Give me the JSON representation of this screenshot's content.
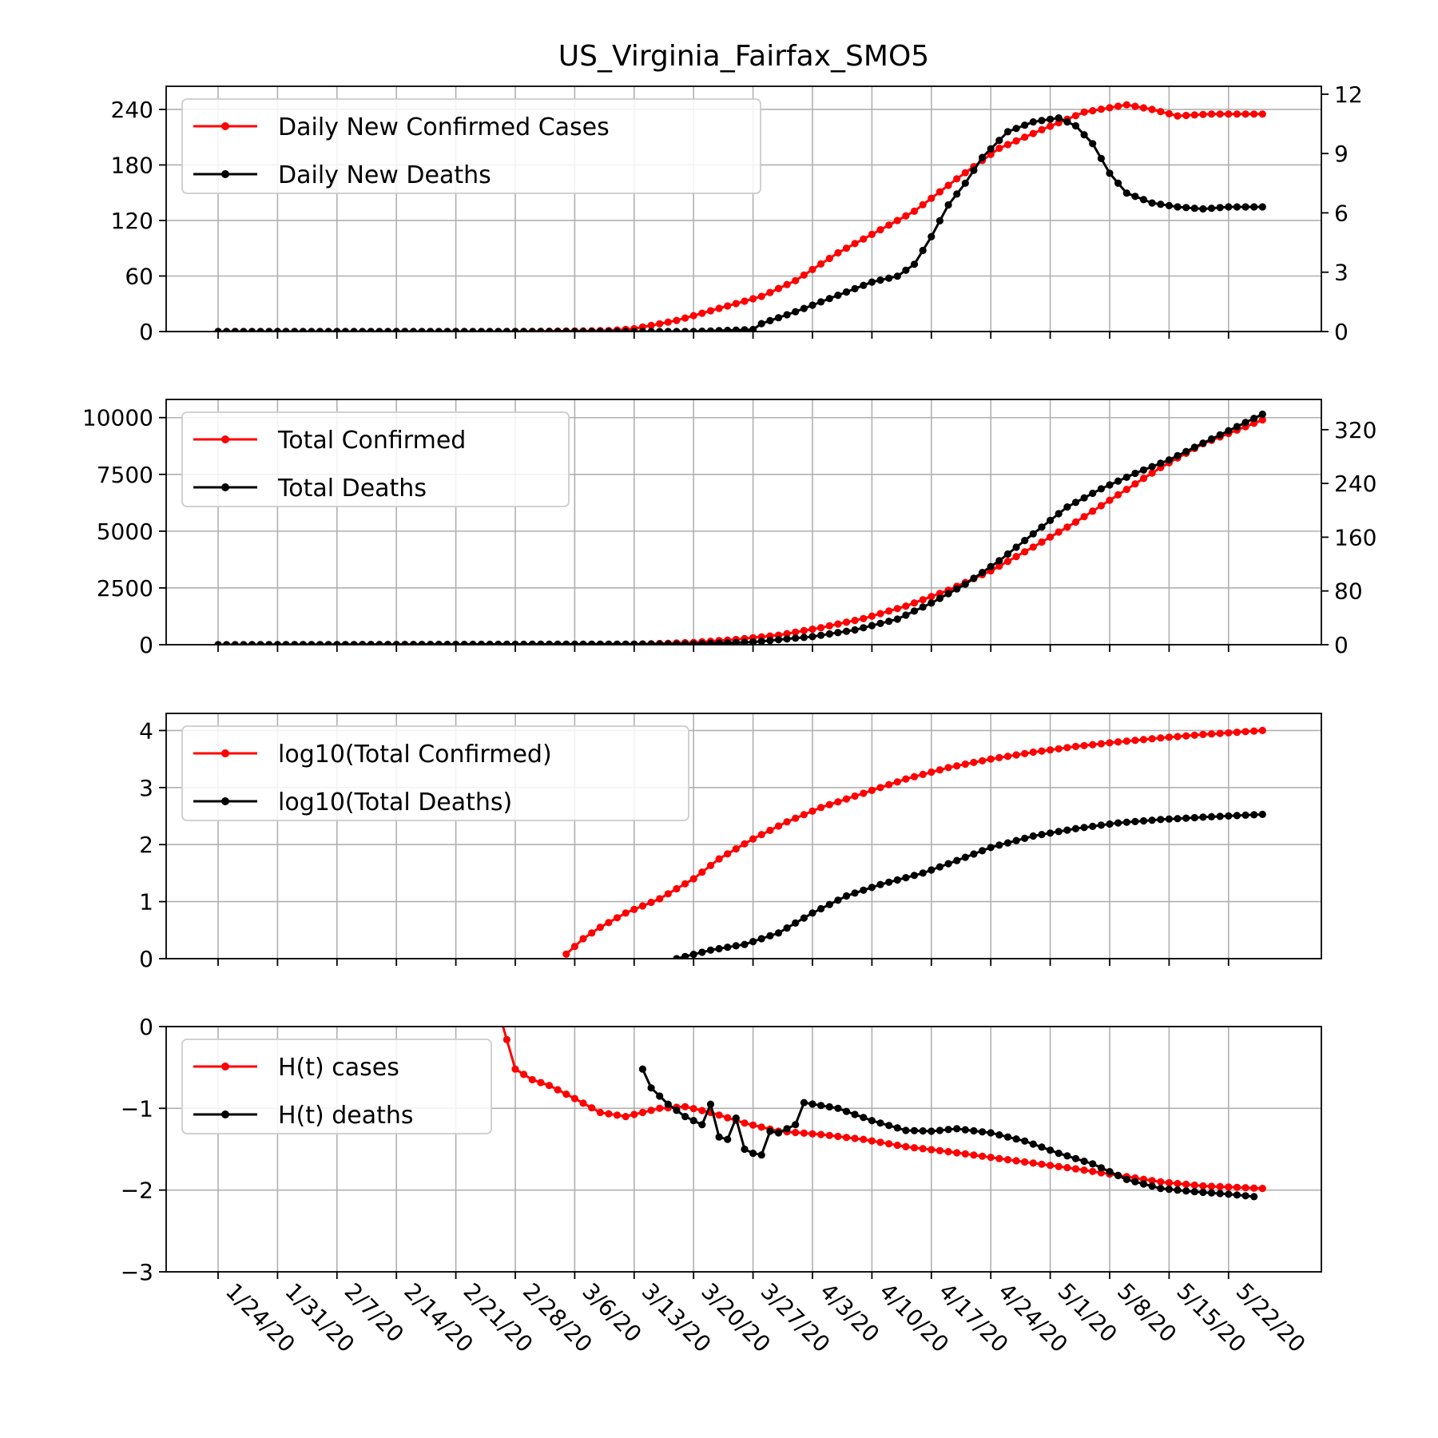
{
  "title": "US_Virginia_Fairfax_SMO5",
  "x_tick_labels": [
    "1/24/20",
    "1/31/20",
    "2/7/20",
    "2/14/20",
    "2/21/20",
    "2/28/20",
    "3/6/20",
    "3/13/20",
    "3/20/20",
    "3/27/20",
    "4/3/20",
    "4/10/20",
    "4/17/20",
    "4/24/20",
    "5/1/20",
    "5/8/20",
    "5/15/20",
    "5/22/20"
  ],
  "chart_data": [
    {
      "type": "line",
      "panel": "daily",
      "x_range": [
        "1/24/20",
        "5/26/20"
      ],
      "x_tick_labels": [
        "1/24/20",
        "1/31/20",
        "2/7/20",
        "2/14/20",
        "2/21/20",
        "2/28/20",
        "3/6/20",
        "3/13/20",
        "3/20/20",
        "3/27/20",
        "4/3/20",
        "4/10/20",
        "4/17/20",
        "4/24/20",
        "5/1/20",
        "5/8/20",
        "5/15/20",
        "5/22/20"
      ],
      "left_axis": {
        "ylim": [
          0,
          265
        ],
        "ticks": [
          0,
          60,
          120,
          180,
          240
        ],
        "tick_labels": [
          "0",
          "60",
          "120",
          "180",
          "240"
        ]
      },
      "right_axis": {
        "ylim": [
          0,
          12.4
        ],
        "ticks": [
          0,
          3,
          6,
          9,
          12
        ],
        "tick_labels": [
          "0",
          "3",
          "6",
          "9",
          "12"
        ]
      },
      "grid": true,
      "legend_placement": "upper-left",
      "series": [
        {
          "name": "Daily New Confirmed Cases",
          "color": "#ff0000",
          "axis": "left",
          "points": [
            [
              "1/24/20",
              0
            ],
            [
              "2/28/20",
              0
            ],
            [
              "3/10/20",
              1
            ],
            [
              "3/13/20",
              3
            ],
            [
              "3/18/20",
              12
            ],
            [
              "3/23/20",
              25
            ],
            [
              "3/28/20",
              38
            ],
            [
              "4/1/20",
              55
            ],
            [
              "4/6/20",
              85
            ],
            [
              "4/11/20",
              110
            ],
            [
              "4/15/20",
              130
            ],
            [
              "4/20/20",
              165
            ],
            [
              "4/25/20",
              198
            ],
            [
              "4/30/20",
              218
            ],
            [
              "5/5/20",
              237
            ],
            [
              "5/10/20",
              245
            ],
            [
              "5/13/20",
              240
            ],
            [
              "5/16/20",
              233
            ],
            [
              "5/20/20",
              235
            ],
            [
              "5/26/20",
              235
            ]
          ]
        },
        {
          "name": "Daily New Deaths",
          "color": "#000000",
          "axis": "right",
          "points": [
            [
              "1/24/20",
              0
            ],
            [
              "3/20/20",
              0
            ],
            [
              "3/27/20",
              0.1
            ],
            [
              "3/28/20",
              0.4
            ],
            [
              "3/30/20",
              0.7
            ],
            [
              "4/1/20",
              1.0
            ],
            [
              "4/4/20",
              1.5
            ],
            [
              "4/7/20",
              2.0
            ],
            [
              "4/10/20",
              2.5
            ],
            [
              "4/13/20",
              2.8
            ],
            [
              "4/15/20",
              3.4
            ],
            [
              "4/17/20",
              4.8
            ],
            [
              "4/19/20",
              6.4
            ],
            [
              "4/21/20",
              7.5
            ],
            [
              "4/23/20",
              8.8
            ],
            [
              "4/26/20",
              10.1
            ],
            [
              "4/29/20",
              10.6
            ],
            [
              "5/2/20",
              10.8
            ],
            [
              "5/4/20",
              10.4
            ],
            [
              "5/6/20",
              9.5
            ],
            [
              "5/8/20",
              8.0
            ],
            [
              "5/10/20",
              7.0
            ],
            [
              "5/13/20",
              6.5
            ],
            [
              "5/16/20",
              6.3
            ],
            [
              "5/19/20",
              6.2
            ],
            [
              "5/22/20",
              6.3
            ],
            [
              "5/26/20",
              6.3
            ]
          ]
        }
      ]
    },
    {
      "type": "line",
      "panel": "totals",
      "x_range": [
        "1/24/20",
        "5/26/20"
      ],
      "x_tick_labels": [
        "1/24/20",
        "1/31/20",
        "2/7/20",
        "2/14/20",
        "2/21/20",
        "2/28/20",
        "3/6/20",
        "3/13/20",
        "3/20/20",
        "3/27/20",
        "4/3/20",
        "4/10/20",
        "4/17/20",
        "4/24/20",
        "5/1/20",
        "5/8/20",
        "5/15/20",
        "5/22/20"
      ],
      "left_axis": {
        "ylim": [
          0,
          10800
        ],
        "ticks": [
          0,
          2500,
          5000,
          7500,
          10000
        ],
        "tick_labels": [
          "0",
          "2500",
          "5000",
          "7500",
          "10000"
        ]
      },
      "right_axis": {
        "ylim": [
          0,
          365
        ],
        "ticks": [
          0,
          80,
          160,
          240,
          320
        ],
        "tick_labels": [
          "0",
          "80",
          "160",
          "240",
          "320"
        ]
      },
      "grid": true,
      "legend_placement": "upper-left",
      "series": [
        {
          "name": "Total Confirmed",
          "color": "#ff0000",
          "axis": "left",
          "points": [
            [
              "1/24/20",
              0
            ],
            [
              "3/10/20",
              5
            ],
            [
              "3/15/20",
              40
            ],
            [
              "3/20/20",
              100
            ],
            [
              "3/25/20",
              230
            ],
            [
              "3/30/20",
              420
            ],
            [
              "4/4/20",
              750
            ],
            [
              "4/9/20",
              1150
            ],
            [
              "4/14/20",
              1700
            ],
            [
              "4/19/20",
              2400
            ],
            [
              "4/24/20",
              3250
            ],
            [
              "4/29/20",
              4300
            ],
            [
              "5/4/20",
              5400
            ],
            [
              "5/9/20",
              6600
            ],
            [
              "5/14/20",
              7800
            ],
            [
              "5/19/20",
              8850
            ],
            [
              "5/26/20",
              9900
            ]
          ]
        },
        {
          "name": "Total Deaths",
          "color": "#000000",
          "axis": "right",
          "points": [
            [
              "1/24/20",
              0
            ],
            [
              "3/20/20",
              1
            ],
            [
              "3/27/20",
              4
            ],
            [
              "4/3/20",
              12
            ],
            [
              "4/8/20",
              22
            ],
            [
              "4/13/20",
              38
            ],
            [
              "4/17/20",
              62
            ],
            [
              "4/21/20",
              90
            ],
            [
              "4/25/20",
              125
            ],
            [
              "4/29/20",
              165
            ],
            [
              "5/3/20",
              205
            ],
            [
              "5/7/20",
              232
            ],
            [
              "5/11/20",
              255
            ],
            [
              "5/15/20",
              275
            ],
            [
              "5/19/20",
              300
            ],
            [
              "5/26/20",
              343
            ]
          ]
        }
      ]
    },
    {
      "type": "line",
      "panel": "log",
      "x_range": [
        "1/24/20",
        "5/26/20"
      ],
      "x_tick_labels": [
        "1/24/20",
        "1/31/20",
        "2/7/20",
        "2/14/20",
        "2/21/20",
        "2/28/20",
        "3/6/20",
        "3/13/20",
        "3/20/20",
        "3/27/20",
        "4/3/20",
        "4/10/20",
        "4/17/20",
        "4/24/20",
        "5/1/20",
        "5/8/20",
        "5/15/20",
        "5/22/20"
      ],
      "left_axis": {
        "ylim": [
          0,
          4.3
        ],
        "ticks": [
          0,
          1,
          2,
          3,
          4
        ],
        "tick_labels": [
          "0",
          "1",
          "2",
          "3",
          "4"
        ]
      },
      "grid": true,
      "legend_placement": "upper-left",
      "series": [
        {
          "name": "log10(Total Confirmed)",
          "color": "#ff0000",
          "axis": "left",
          "points": [
            [
              "3/5/20",
              0.08
            ],
            [
              "3/7/20",
              0.35
            ],
            [
              "3/9/20",
              0.55
            ],
            [
              "3/12/20",
              0.8
            ],
            [
              "3/16/20",
              1.05
            ],
            [
              "3/20/20",
              1.4
            ],
            [
              "3/23/20",
              1.75
            ],
            [
              "3/27/20",
              2.1
            ],
            [
              "3/31/20",
              2.4
            ],
            [
              "4/4/20",
              2.65
            ],
            [
              "4/9/20",
              2.9
            ],
            [
              "4/14/20",
              3.15
            ],
            [
              "4/19/20",
              3.35
            ],
            [
              "4/24/20",
              3.5
            ],
            [
              "4/29/20",
              3.62
            ],
            [
              "5/4/20",
              3.72
            ],
            [
              "5/9/20",
              3.8
            ],
            [
              "5/14/20",
              3.87
            ],
            [
              "5/19/20",
              3.93
            ],
            [
              "5/26/20",
              4.0
            ]
          ]
        },
        {
          "name": "log10(Total Deaths)",
          "color": "#000000",
          "axis": "left",
          "points": [
            [
              "3/18/20",
              0.0
            ],
            [
              "3/22/20",
              0.15
            ],
            [
              "3/26/20",
              0.25
            ],
            [
              "3/30/20",
              0.45
            ],
            [
              "4/3/20",
              0.8
            ],
            [
              "4/7/20",
              1.1
            ],
            [
              "4/11/20",
              1.3
            ],
            [
              "4/16/20",
              1.5
            ],
            [
              "4/20/20",
              1.72
            ],
            [
              "4/24/20",
              1.95
            ],
            [
              "4/29/20",
              2.15
            ],
            [
              "5/4/20",
              2.28
            ],
            [
              "5/9/20",
              2.38
            ],
            [
              "5/14/20",
              2.44
            ],
            [
              "5/19/20",
              2.48
            ],
            [
              "5/26/20",
              2.53
            ]
          ]
        }
      ]
    },
    {
      "type": "line",
      "panel": "H",
      "x_range": [
        "1/24/20",
        "5/26/20"
      ],
      "x_tick_labels": [
        "1/24/20",
        "1/31/20",
        "2/7/20",
        "2/14/20",
        "2/21/20",
        "2/28/20",
        "3/6/20",
        "3/13/20",
        "3/20/20",
        "3/27/20",
        "4/3/20",
        "4/10/20",
        "4/17/20",
        "4/24/20",
        "5/1/20",
        "5/8/20",
        "5/15/20",
        "5/22/20"
      ],
      "left_axis": {
        "ylim": [
          -3,
          0
        ],
        "ticks": [
          -3,
          -2,
          -1,
          0
        ],
        "tick_labels": [
          "−3",
          "−2",
          "−1",
          "0"
        ]
      },
      "grid": true,
      "legend_placement": "upper-left",
      "series": [
        {
          "name": "H(t) cases",
          "color": "#ff0000",
          "axis": "left",
          "points": [
            [
              "2/26/20",
              0.2
            ],
            [
              "2/28/20",
              -0.52
            ],
            [
              "3/1/20",
              -0.65
            ],
            [
              "3/3/20",
              -0.72
            ],
            [
              "3/6/20",
              -0.88
            ],
            [
              "3/9/20",
              -1.05
            ],
            [
              "3/12/20",
              -1.1
            ],
            [
              "3/16/20",
              -1.0
            ],
            [
              "3/19/20",
              -0.98
            ],
            [
              "3/22/20",
              -1.05
            ],
            [
              "3/26/20",
              -1.18
            ],
            [
              "3/30/20",
              -1.28
            ],
            [
              "4/4/20",
              -1.32
            ],
            [
              "4/9/20",
              -1.38
            ],
            [
              "4/14/20",
              -1.47
            ],
            [
              "4/19/20",
              -1.53
            ],
            [
              "4/24/20",
              -1.6
            ],
            [
              "4/29/20",
              -1.67
            ],
            [
              "5/4/20",
              -1.74
            ],
            [
              "5/9/20",
              -1.82
            ],
            [
              "5/14/20",
              -1.9
            ],
            [
              "5/19/20",
              -1.95
            ],
            [
              "5/26/20",
              -1.98
            ]
          ]
        },
        {
          "name": "H(t) deaths",
          "color": "#000000",
          "axis": "left",
          "points": [
            [
              "3/14/20",
              -0.52
            ],
            [
              "3/15/20",
              -0.75
            ],
            [
              "3/17/20",
              -0.95
            ],
            [
              "3/19/20",
              -1.1
            ],
            [
              "3/21/20",
              -1.2
            ],
            [
              "3/22/20",
              -0.95
            ],
            [
              "3/23/20",
              -1.35
            ],
            [
              "3/24/20",
              -1.38
            ],
            [
              "3/25/20",
              -1.12
            ],
            [
              "3/26/20",
              -1.5
            ],
            [
              "3/27/20",
              -1.55
            ],
            [
              "3/28/20",
              -1.57
            ],
            [
              "3/29/20",
              -1.28
            ],
            [
              "3/30/20",
              -1.3
            ],
            [
              "4/1/20",
              -1.2
            ],
            [
              "4/2/20",
              -0.93
            ],
            [
              "4/6/20",
              -1.0
            ],
            [
              "4/10/20",
              -1.15
            ],
            [
              "4/14/20",
              -1.27
            ],
            [
              "4/17/20",
              -1.28
            ],
            [
              "4/20/20",
              -1.25
            ],
            [
              "4/24/20",
              -1.3
            ],
            [
              "4/28/20",
              -1.4
            ],
            [
              "5/2/20",
              -1.55
            ],
            [
              "5/6/20",
              -1.68
            ],
            [
              "5/10/20",
              -1.87
            ],
            [
              "5/14/20",
              -1.98
            ],
            [
              "5/18/20",
              -2.02
            ],
            [
              "5/22/20",
              -2.05
            ],
            [
              "5/25/20",
              -2.08
            ]
          ]
        }
      ]
    }
  ]
}
